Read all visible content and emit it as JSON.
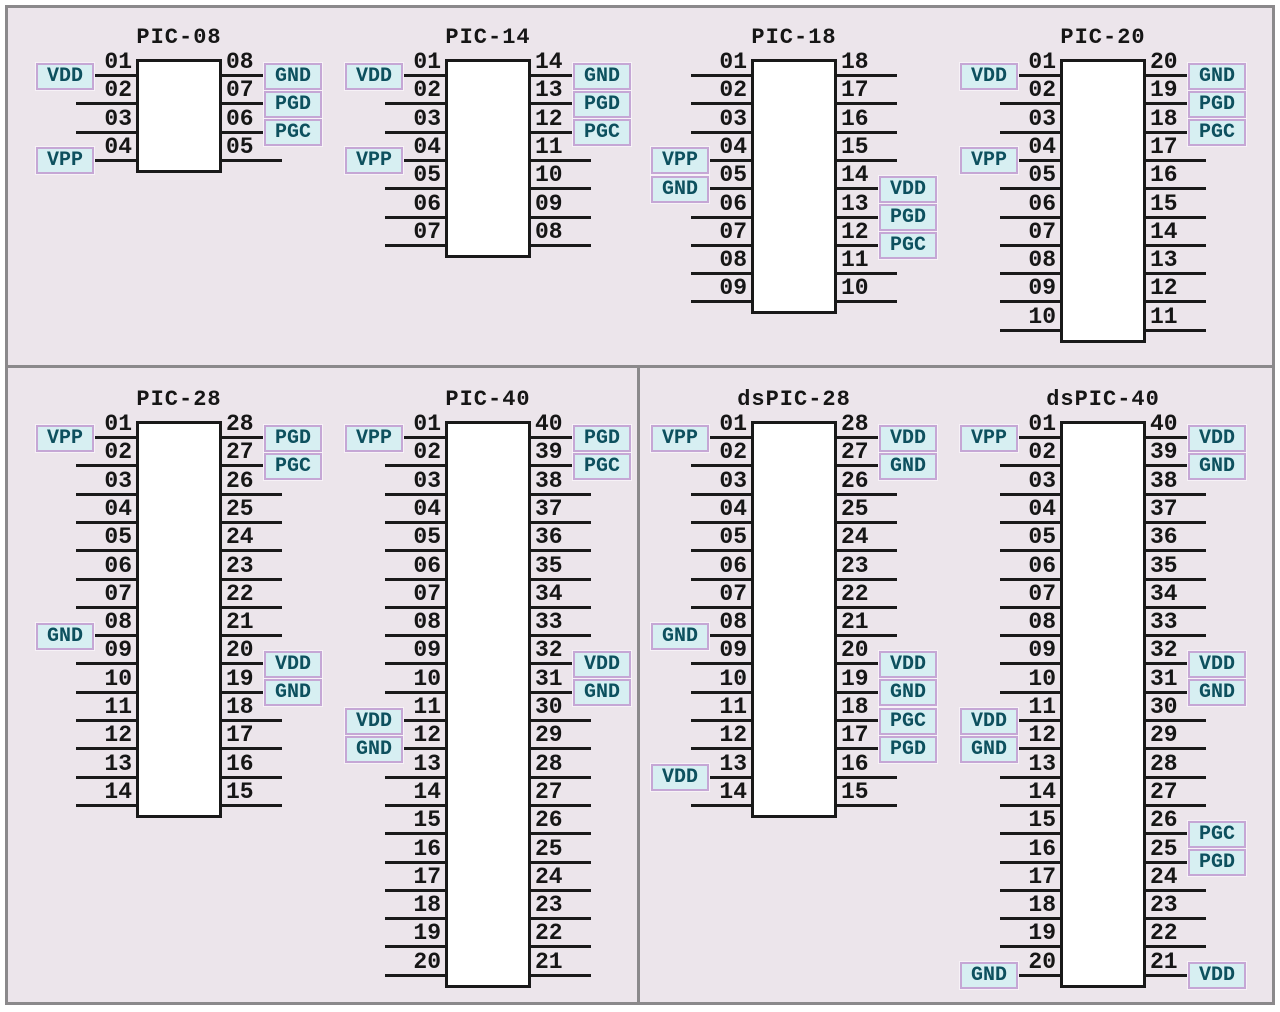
{
  "colors": {
    "background": "#ece5eb",
    "frame_border": "#8b898b",
    "chip_fill": "#ffffff",
    "chip_border": "#191919",
    "pin_line": "#1a1a1a",
    "pin_text": "#161616",
    "label_bg": "#d7eff2",
    "label_border": "#c5a7d5",
    "label_text": "#0d505e"
  },
  "diagram": {
    "chips": [
      {
        "title": "PIC-08",
        "col": 0,
        "row": 0,
        "left_pins": [
          "01",
          "02",
          "03",
          "04"
        ],
        "right_pins": [
          "08",
          "07",
          "06",
          "05"
        ],
        "left_labels": {
          "01": "VDD",
          "04": "VPP"
        },
        "right_labels": {
          "08": "GND",
          "07": "PGD",
          "06": "PGC"
        }
      },
      {
        "title": "PIC-14",
        "col": 1,
        "row": 0,
        "left_pins": [
          "01",
          "02",
          "03",
          "04",
          "05",
          "06",
          "07"
        ],
        "right_pins": [
          "14",
          "13",
          "12",
          "11",
          "10",
          "09",
          "08"
        ],
        "left_labels": {
          "01": "VDD",
          "04": "VPP"
        },
        "right_labels": {
          "14": "GND",
          "13": "PGD",
          "12": "PGC"
        }
      },
      {
        "title": "PIC-18",
        "col": 2,
        "row": 0,
        "left_pins": [
          "01",
          "02",
          "03",
          "04",
          "05",
          "06",
          "07",
          "08",
          "09"
        ],
        "right_pins": [
          "18",
          "17",
          "16",
          "15",
          "14",
          "13",
          "12",
          "11",
          "10"
        ],
        "left_labels": {
          "04": "VPP",
          "05": "GND"
        },
        "right_labels": {
          "14": "VDD",
          "13": "PGD",
          "12": "PGC"
        }
      },
      {
        "title": "PIC-20",
        "col": 3,
        "row": 0,
        "left_pins": [
          "01",
          "02",
          "03",
          "04",
          "05",
          "06",
          "07",
          "08",
          "09",
          "10"
        ],
        "right_pins": [
          "20",
          "19",
          "18",
          "17",
          "16",
          "15",
          "14",
          "13",
          "12",
          "11"
        ],
        "left_labels": {
          "01": "VDD",
          "04": "VPP"
        },
        "right_labels": {
          "20": "GND",
          "19": "PGD",
          "18": "PGC"
        }
      },
      {
        "title": "PIC-28",
        "col": 0,
        "row": 1,
        "left_pins": [
          "01",
          "02",
          "03",
          "04",
          "05",
          "06",
          "07",
          "08",
          "09",
          "10",
          "11",
          "12",
          "13",
          "14"
        ],
        "right_pins": [
          "28",
          "27",
          "26",
          "25",
          "24",
          "23",
          "22",
          "21",
          "20",
          "19",
          "18",
          "17",
          "16",
          "15"
        ],
        "left_labels": {
          "01": "VPP",
          "08": "GND"
        },
        "right_labels": {
          "28": "PGD",
          "27": "PGC",
          "20": "VDD",
          "19": "GND"
        }
      },
      {
        "title": "PIC-40",
        "col": 1,
        "row": 1,
        "left_pins": [
          "01",
          "02",
          "03",
          "04",
          "05",
          "06",
          "07",
          "08",
          "09",
          "10",
          "11",
          "12",
          "13",
          "14",
          "15",
          "16",
          "17",
          "18",
          "19",
          "20"
        ],
        "right_pins": [
          "40",
          "39",
          "38",
          "37",
          "36",
          "35",
          "34",
          "33",
          "32",
          "31",
          "30",
          "29",
          "28",
          "27",
          "26",
          "25",
          "24",
          "23",
          "22",
          "21"
        ],
        "left_labels": {
          "01": "VPP",
          "11": "VDD",
          "12": "GND"
        },
        "right_labels": {
          "40": "PGD",
          "39": "PGC",
          "32": "VDD",
          "31": "GND"
        }
      },
      {
        "title": "dsPIC-28",
        "col": 2,
        "row": 1,
        "left_pins": [
          "01",
          "02",
          "03",
          "04",
          "05",
          "06",
          "07",
          "08",
          "09",
          "10",
          "11",
          "12",
          "13",
          "14"
        ],
        "right_pins": [
          "28",
          "27",
          "26",
          "25",
          "24",
          "23",
          "22",
          "21",
          "20",
          "19",
          "18",
          "17",
          "16",
          "15"
        ],
        "left_labels": {
          "01": "VPP",
          "08": "GND",
          "13": "VDD"
        },
        "right_labels": {
          "28": "VDD",
          "27": "GND",
          "20": "VDD",
          "19": "GND",
          "18": "PGC",
          "17": "PGD"
        }
      },
      {
        "title": "dsPIC-40",
        "col": 3,
        "row": 1,
        "left_pins": [
          "01",
          "02",
          "03",
          "04",
          "05",
          "06",
          "07",
          "08",
          "09",
          "10",
          "11",
          "12",
          "13",
          "14",
          "15",
          "16",
          "17",
          "18",
          "19",
          "20"
        ],
        "right_pins": [
          "40",
          "39",
          "38",
          "37",
          "36",
          "35",
          "34",
          "33",
          "32",
          "31",
          "30",
          "29",
          "28",
          "27",
          "26",
          "25",
          "24",
          "23",
          "22",
          "21"
        ],
        "left_labels": {
          "01": "VPP",
          "11": "VDD",
          "12": "GND",
          "20": "GND"
        },
        "right_labels": {
          "40": "VDD",
          "39": "GND",
          "32": "VDD",
          "31": "GND",
          "26": "PGC",
          "25": "PGD",
          "21": "VDD"
        }
      }
    ]
  }
}
